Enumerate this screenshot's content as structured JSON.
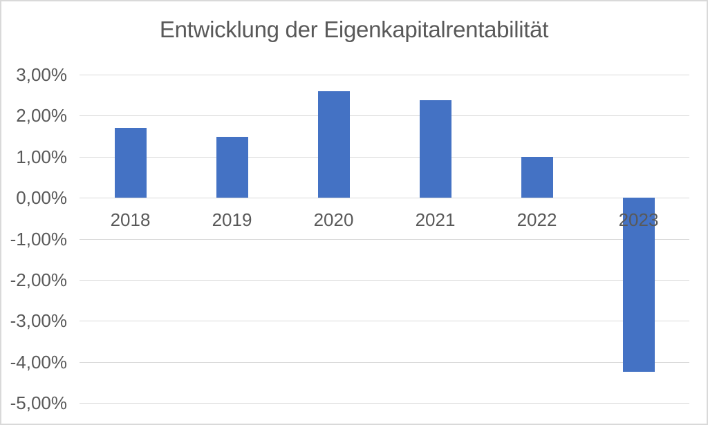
{
  "chart_data": {
    "type": "bar",
    "title": "Entwicklung der Eigenkapitalrentabilität",
    "categories": [
      "2018",
      "2019",
      "2020",
      "2021",
      "2022",
      "2023"
    ],
    "values": [
      1.71,
      1.49,
      2.6,
      2.37,
      1.0,
      -4.25
    ],
    "value_unit": "%",
    "ylim": [
      -5,
      3
    ],
    "y_ticks": [
      {
        "value": 3,
        "label": "3,00%"
      },
      {
        "value": 2,
        "label": "2,00%"
      },
      {
        "value": 1,
        "label": "1,00%"
      },
      {
        "value": 0,
        "label": "0,00%"
      },
      {
        "value": -1,
        "label": "-1,00%"
      },
      {
        "value": -2,
        "label": "-2,00%"
      },
      {
        "value": -3,
        "label": "-3,00%"
      },
      {
        "value": -4,
        "label": "-4,00%"
      },
      {
        "value": -5,
        "label": "-5,00%"
      }
    ],
    "grid": true,
    "legend": false,
    "xlabel": "",
    "ylabel": "",
    "colors": {
      "bar": "#4472C4",
      "gridline": "#D9D9D9",
      "axis_text": "#595959",
      "title_text": "#595959",
      "background": "#FFFFFF",
      "border": "#D9D9D9"
    }
  }
}
